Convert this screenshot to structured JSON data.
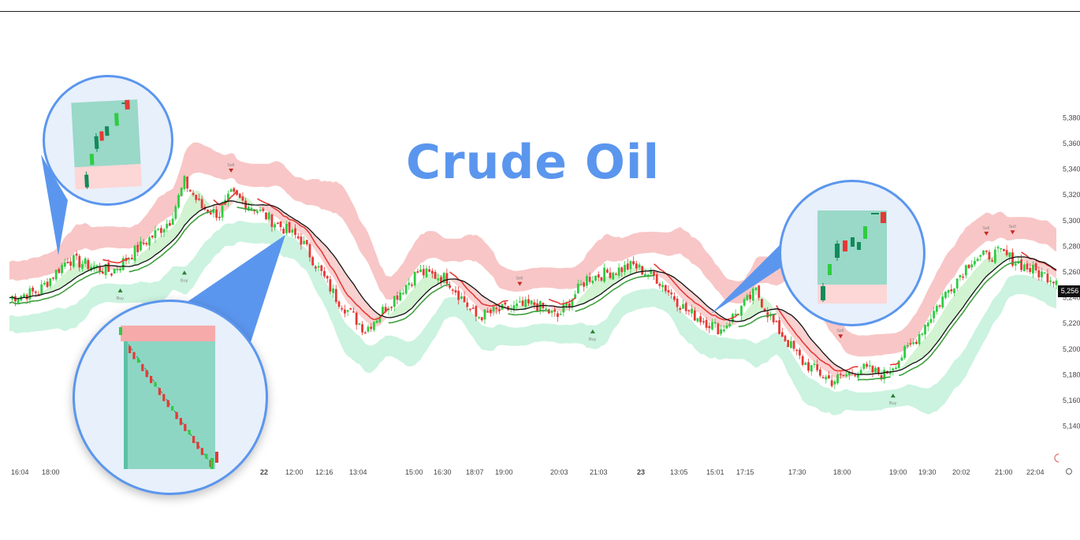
{
  "title": "Crude Oil",
  "current_price_label": "5,256",
  "colors": {
    "title": "#5b96ee",
    "up": "#2ecc40",
    "down": "#e53935",
    "upper_band": "#f6b3b3",
    "lower_band": "#b9efd6",
    "ma": "#111111",
    "fast_red": "#e53935",
    "fast_green": "#3a9e3a",
    "bubble_border": "#5b96ee"
  },
  "chart_data": {
    "type": "candlestick",
    "title": "Crude Oil",
    "y_ticks": [
      5140,
      5160,
      5180,
      5200,
      5220,
      5240,
      5260,
      5280,
      5300,
      5320,
      5340,
      5360,
      5380
    ],
    "y_tick_labels": [
      "5,140",
      "5,160",
      "5,180",
      "5,200",
      "5,220",
      "5,240",
      "5,260",
      "5,280",
      "5,300",
      "5,320",
      "5,340",
      "5,360",
      "5,380"
    ],
    "ylim": [
      5130,
      5390
    ],
    "x_tick_labels": [
      "16:04",
      "18:00",
      "22",
      "12:00",
      "12:16",
      "13:04",
      "15:00",
      "16:30",
      "18:07",
      "19:00",
      "20:03",
      "21:03",
      "23",
      "13:05",
      "15:01",
      "17:15",
      "17:30",
      "18:00",
      "19:00",
      "19:30",
      "20:02",
      "21:00",
      "22:04"
    ],
    "x_tick_bold": [
      false,
      false,
      true,
      false,
      false,
      false,
      false,
      false,
      false,
      false,
      false,
      false,
      true,
      false,
      false,
      false,
      false,
      false,
      false,
      false,
      false,
      false,
      false
    ],
    "price_path": [
      [
        0,
        5240
      ],
      [
        10,
        5245
      ],
      [
        20,
        5270
      ],
      [
        35,
        5260
      ],
      [
        45,
        5280
      ],
      [
        55,
        5300
      ],
      [
        60,
        5330
      ],
      [
        66,
        5310
      ],
      [
        72,
        5305
      ],
      [
        76,
        5320
      ],
      [
        84,
        5310
      ],
      [
        90,
        5300
      ],
      [
        100,
        5285
      ],
      [
        112,
        5240
      ],
      [
        122,
        5215
      ],
      [
        130,
        5235
      ],
      [
        140,
        5260
      ],
      [
        150,
        5255
      ],
      [
        160,
        5225
      ],
      [
        168,
        5230
      ],
      [
        180,
        5235
      ],
      [
        188,
        5225
      ],
      [
        198,
        5255
      ],
      [
        206,
        5260
      ],
      [
        214,
        5265
      ],
      [
        222,
        5255
      ],
      [
        232,
        5230
      ],
      [
        244,
        5215
      ],
      [
        250,
        5230
      ],
      [
        256,
        5245
      ],
      [
        262,
        5220
      ],
      [
        272,
        5190
      ],
      [
        282,
        5175
      ],
      [
        292,
        5185
      ],
      [
        300,
        5180
      ],
      [
        310,
        5205
      ],
      [
        320,
        5240
      ],
      [
        330,
        5270
      ],
      [
        340,
        5275
      ],
      [
        350,
        5262
      ],
      [
        358,
        5255
      ]
    ],
    "candle_count": 360,
    "signals": [
      {
        "label": "Buy",
        "x": 38
      },
      {
        "label": "Buy",
        "x": 60
      },
      {
        "label": "Buy",
        "x": 200
      },
      {
        "label": "Buy",
        "x": 303
      },
      {
        "label": "Sell",
        "x": 76
      },
      {
        "label": "Sell",
        "x": 175
      },
      {
        "label": "Sell",
        "x": 285
      },
      {
        "label": "Sell",
        "x": 335
      },
      {
        "label": "Sell",
        "x": 344
      }
    ]
  }
}
